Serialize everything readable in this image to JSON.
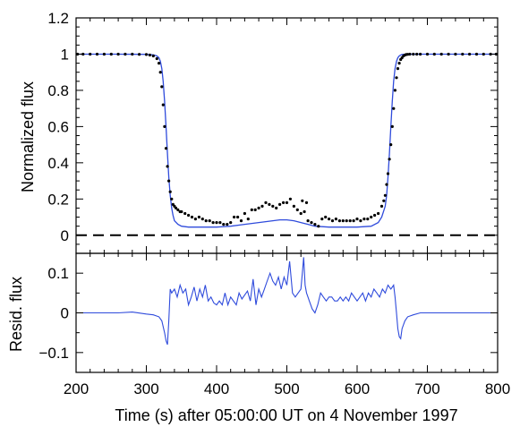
{
  "chart_data": [
    {
      "type": "scatter",
      "panel": "top",
      "xlabel": "",
      "ylabel": "Normalized flux",
      "xlim": [
        200,
        800
      ],
      "ylim": [
        -0.1,
        1.2
      ],
      "yticks": [
        "0",
        "0.2",
        "0.4",
        "0.6",
        "0.8",
        "1",
        "1.2"
      ],
      "grid": false,
      "colors": {
        "model": "#2f4bdc",
        "observed": "#000000",
        "zero_line": "#000000"
      },
      "series": [
        {
          "style": "points",
          "x": [
            202,
            210,
            220,
            230,
            240,
            250,
            260,
            270,
            280,
            290,
            300,
            305,
            310,
            315,
            318,
            320,
            322,
            324,
            326,
            328,
            330,
            332,
            334,
            336,
            338,
            340,
            342,
            345,
            348,
            350,
            355,
            360,
            365,
            370,
            375,
            380,
            385,
            390,
            395,
            400,
            405,
            410,
            415,
            420,
            425,
            430,
            435,
            440,
            445,
            450,
            455,
            460,
            465,
            470,
            475,
            480,
            485,
            490,
            495,
            500,
            505,
            510,
            515,
            520,
            522,
            525,
            528,
            530,
            535,
            540,
            545,
            550,
            555,
            560,
            565,
            570,
            575,
            580,
            585,
            590,
            595,
            600,
            605,
            610,
            615,
            620,
            625,
            630,
            635,
            638,
            640,
            642,
            644,
            646,
            648,
            650,
            652,
            654,
            656,
            658,
            660,
            662,
            664,
            666,
            668,
            670,
            672,
            675,
            680,
            685,
            690,
            700,
            710,
            720,
            730,
            740,
            750,
            760,
            770,
            780,
            790,
            798
          ],
          "y": [
            1.0,
            1.0,
            1.0,
            1.0,
            1.0,
            1.0,
            1.0,
            1.0,
            1.0,
            0.999,
            0.998,
            0.995,
            0.99,
            0.975,
            0.95,
            0.9,
            0.82,
            0.72,
            0.6,
            0.48,
            0.38,
            0.3,
            0.24,
            0.2,
            0.17,
            0.16,
            0.15,
            0.14,
            0.13,
            0.13,
            0.12,
            0.11,
            0.1,
            0.09,
            0.1,
            0.09,
            0.08,
            0.08,
            0.07,
            0.07,
            0.07,
            0.06,
            0.06,
            0.07,
            0.1,
            0.1,
            0.08,
            0.12,
            0.09,
            0.14,
            0.14,
            0.15,
            0.16,
            0.18,
            0.17,
            0.16,
            0.15,
            0.17,
            0.18,
            0.18,
            0.2,
            0.16,
            0.14,
            0.12,
            0.19,
            0.13,
            0.18,
            0.08,
            0.07,
            0.06,
            0.05,
            0.09,
            0.1,
            0.09,
            0.08,
            0.09,
            0.08,
            0.08,
            0.08,
            0.08,
            0.08,
            0.09,
            0.08,
            0.09,
            0.09,
            0.1,
            0.11,
            0.12,
            0.16,
            0.19,
            0.22,
            0.28,
            0.34,
            0.42,
            0.5,
            0.6,
            0.7,
            0.8,
            0.87,
            0.92,
            0.95,
            0.97,
            0.98,
            0.99,
            0.995,
            0.998,
            0.999,
            1.0,
            1.0,
            1.0,
            1.0,
            1.0,
            1.0,
            1.0,
            1.0,
            1.0,
            1.0,
            1.0,
            1.0,
            1.0,
            1.0,
            1.0
          ]
        },
        {
          "style": "line",
          "x": [
            200,
            250,
            300,
            310,
            315,
            318,
            320,
            322,
            324,
            326,
            328,
            330,
            332,
            334,
            336,
            338,
            340,
            345,
            350,
            360,
            380,
            400,
            420,
            440,
            460,
            480,
            490,
            500,
            510,
            520,
            530,
            540,
            560,
            580,
            600,
            620,
            630,
            635,
            640,
            642,
            644,
            646,
            648,
            650,
            652,
            654,
            656,
            658,
            660,
            662,
            664,
            666,
            670,
            680,
            700,
            750,
            800
          ],
          "y": [
            1.0,
            1.0,
            0.999,
            0.996,
            0.99,
            0.98,
            0.96,
            0.92,
            0.85,
            0.74,
            0.6,
            0.45,
            0.32,
            0.22,
            0.15,
            0.11,
            0.08,
            0.06,
            0.05,
            0.045,
            0.045,
            0.045,
            0.05,
            0.06,
            0.07,
            0.08,
            0.085,
            0.085,
            0.08,
            0.07,
            0.06,
            0.05,
            0.045,
            0.045,
            0.045,
            0.05,
            0.07,
            0.1,
            0.16,
            0.22,
            0.32,
            0.45,
            0.6,
            0.74,
            0.85,
            0.92,
            0.96,
            0.98,
            0.99,
            0.995,
            0.998,
            0.999,
            1.0,
            1.0,
            1.0,
            1.0,
            1.0
          ]
        },
        {
          "style": "dashed",
          "x": [
            200,
            800
          ],
          "y": [
            0,
            0
          ]
        }
      ]
    },
    {
      "type": "line",
      "panel": "bottom",
      "xlabel": "Time (s) after 05:00:00 UT on 4 November 1997",
      "ylabel": "Resid. flux",
      "xlim": [
        200,
        800
      ],
      "ylim": [
        -0.15,
        0.15
      ],
      "xticks": [
        "200",
        "300",
        "400",
        "500",
        "600",
        "700",
        "800"
      ],
      "yticks": [
        "−0.1",
        "0",
        "0.1"
      ],
      "grid": false,
      "series": [
        {
          "x": [
            200,
            220,
            240,
            260,
            280,
            300,
            310,
            318,
            322,
            326,
            328,
            330,
            332,
            334,
            336,
            340,
            344,
            348,
            352,
            356,
            360,
            364,
            368,
            372,
            376,
            380,
            384,
            388,
            392,
            396,
            400,
            404,
            408,
            412,
            416,
            420,
            424,
            428,
            432,
            436,
            440,
            444,
            448,
            452,
            456,
            460,
            464,
            468,
            472,
            476,
            480,
            484,
            488,
            492,
            496,
            500,
            504,
            508,
            512,
            516,
            520,
            522,
            524,
            526,
            528,
            530,
            532,
            536,
            540,
            544,
            548,
            552,
            556,
            560,
            564,
            568,
            572,
            576,
            580,
            584,
            588,
            592,
            596,
            600,
            604,
            608,
            612,
            616,
            620,
            624,
            628,
            632,
            636,
            640,
            644,
            648,
            652,
            654,
            656,
            658,
            660,
            662,
            664,
            668,
            672,
            680,
            690,
            700,
            720,
            740,
            760,
            780,
            800
          ],
          "y": [
            0.0,
            0.0,
            0.0,
            0.0,
            0.002,
            -0.003,
            -0.005,
            -0.01,
            -0.02,
            -0.05,
            -0.07,
            -0.08,
            -0.02,
            0.06,
            0.05,
            0.06,
            0.04,
            0.07,
            0.05,
            0.06,
            0.02,
            0.04,
            0.065,
            0.03,
            0.06,
            0.04,
            0.07,
            0.03,
            0.04,
            0.025,
            0.02,
            0.03,
            0.02,
            0.05,
            0.02,
            0.04,
            0.03,
            0.02,
            0.05,
            0.035,
            0.045,
            0.055,
            0.03,
            0.085,
            0.02,
            0.06,
            0.04,
            0.06,
            0.08,
            0.1,
            0.08,
            0.07,
            0.09,
            0.06,
            0.09,
            0.07,
            0.13,
            0.05,
            0.04,
            0.05,
            0.06,
            0.1,
            0.14,
            0.07,
            0.05,
            0.04,
            0.03,
            0.01,
            0.0,
            0.02,
            0.05,
            0.04,
            0.03,
            0.04,
            0.04,
            0.03,
            0.03,
            0.04,
            0.03,
            0.04,
            0.03,
            0.05,
            0.04,
            0.03,
            0.04,
            0.05,
            0.03,
            0.05,
            0.04,
            0.06,
            0.05,
            0.04,
            0.06,
            0.05,
            0.07,
            0.06,
            0.07,
            0.04,
            0.0,
            -0.04,
            -0.06,
            -0.065,
            -0.04,
            -0.02,
            -0.01,
            -0.005,
            0.0,
            0.0,
            0.0,
            0.0,
            0.0,
            0.0,
            0.0
          ]
        }
      ]
    }
  ]
}
